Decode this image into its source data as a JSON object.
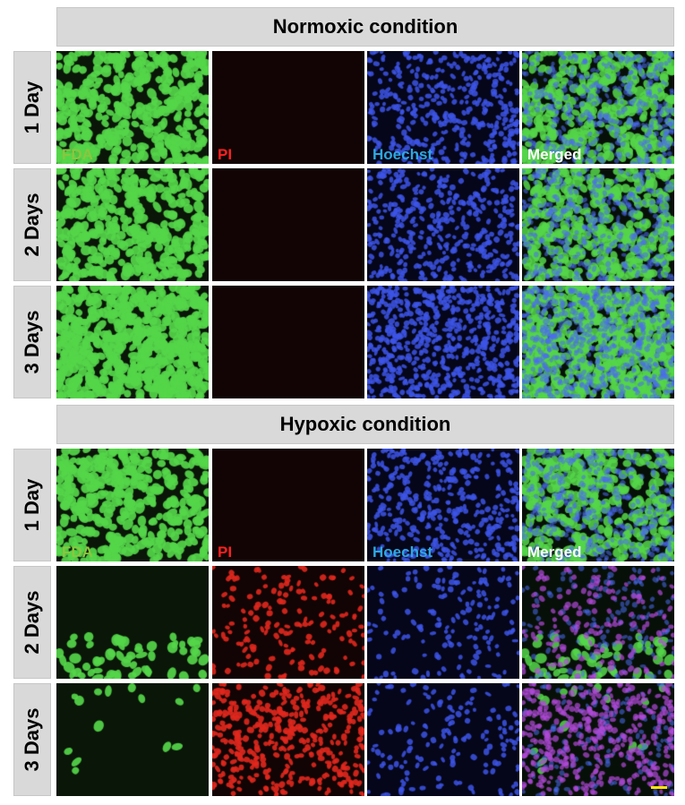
{
  "sections": [
    {
      "title": "Normoxic condition",
      "rows": [
        {
          "label": "1 Day",
          "panels": {
            "fda": "dense",
            "pi": "none",
            "hoechst": "dense"
          }
        },
        {
          "label": "2 Days",
          "panels": {
            "fda": "dense",
            "pi": "none",
            "hoechst": "dense"
          }
        },
        {
          "label": "3 Days",
          "panels": {
            "fda": "very dense",
            "pi": "none",
            "hoechst": "very dense"
          }
        }
      ]
    },
    {
      "title": "Hypoxic condition",
      "rows": [
        {
          "label": "1 Day",
          "panels": {
            "fda": "dense",
            "pi": "none",
            "hoechst": "dense"
          }
        },
        {
          "label": "2 Days",
          "panels": {
            "fda": "sparse, bottom cluster",
            "pi": "moderate",
            "hoechst": "moderate"
          }
        },
        {
          "label": "3 Days",
          "panels": {
            "fda": "very sparse",
            "pi": "dense",
            "hoechst": "moderate"
          }
        }
      ]
    }
  ],
  "channels": [
    {
      "name": "FDA",
      "color": "#8cc63f"
    },
    {
      "name": "PI",
      "color": "#ff2020"
    },
    {
      "name": "Hoechst",
      "color": "#2ea8e0"
    },
    {
      "name": "Merged",
      "color": "#ffffff"
    }
  ],
  "scale_bar_color": "#ffe600"
}
